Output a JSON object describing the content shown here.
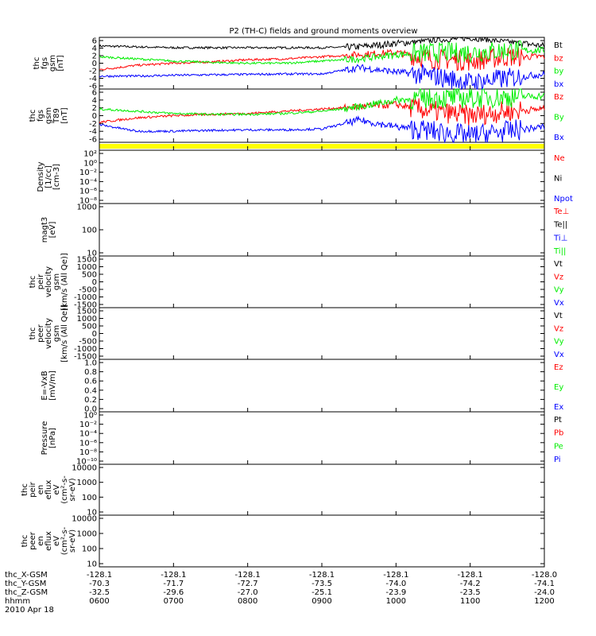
{
  "title": "P2 (TH-C) fields and ground moments overview",
  "colors": {
    "black": "#000000",
    "red": "#ff0000",
    "green": "#00ee00",
    "blue": "#0000ff",
    "yellow": "#ffff00"
  },
  "panels": [
    {
      "ylabel": [
        "thc",
        "fgs",
        "gsm",
        "[nT]"
      ],
      "ticks": [
        "6",
        "4",
        "2",
        "0",
        "-2",
        "-4",
        "-6"
      ],
      "legend": [
        [
          "Bt",
          "black"
        ],
        [
          "bz",
          "red"
        ],
        [
          "by",
          "green"
        ],
        [
          "bx",
          "blue"
        ]
      ]
    },
    {
      "ylabel": [
        "thc",
        "fgs",
        "gsm",
        "T89",
        "[nT]"
      ],
      "ticks": [
        "6",
        "4",
        "2",
        "0",
        "-2",
        "-4",
        "-6"
      ],
      "legend": [
        [
          "Bz",
          "red"
        ],
        [
          "By",
          "green"
        ],
        [
          "Bx",
          "blue"
        ]
      ]
    },
    {
      "ylabel": [],
      "ticks": [],
      "legend": []
    },
    {
      "ylabel": [
        "Density",
        "[1/cc]",
        "[cm-3]"
      ],
      "ticks": [
        "10²",
        "10⁰",
        "10⁻²",
        "10⁻⁴",
        "10⁻⁶",
        "10⁻⁸"
      ],
      "legend": [
        [
          "Ne",
          "red"
        ],
        [
          "Ni",
          "black"
        ],
        [
          "Npot",
          "blue"
        ]
      ]
    },
    {
      "ylabel": [
        "magt3",
        "[eV]"
      ],
      "ticks": [
        "1000",
        "100",
        "10"
      ],
      "legend": [
        [
          "Te⊥",
          "red"
        ],
        [
          "Te||",
          "black"
        ],
        [
          "Ti⊥",
          "blue"
        ],
        [
          "Ti||",
          "green"
        ]
      ]
    },
    {
      "ylabel": [
        "thc",
        "peir",
        "velocity",
        "gsm",
        "[km/s (All Qe)]"
      ],
      "ticks": [
        "1500",
        "1000",
        "500",
        "0",
        "-500",
        "-1000",
        "-1500"
      ],
      "legend": [
        [
          "Vt",
          "black"
        ],
        [
          "Vz",
          "red"
        ],
        [
          "Vy",
          "green"
        ],
        [
          "Vx",
          "blue"
        ]
      ]
    },
    {
      "ylabel": [
        "thc",
        "peer",
        "velocity",
        "gsm",
        "[km/s (All Qe)]"
      ],
      "ticks": [
        "1500",
        "1000",
        "500",
        "0",
        "-500",
        "-1000",
        "-1500"
      ],
      "legend": [
        [
          "Vt",
          "black"
        ],
        [
          "Vz",
          "red"
        ],
        [
          "Vy",
          "green"
        ],
        [
          "Vx",
          "blue"
        ]
      ]
    },
    {
      "ylabel": [
        "E=-VxB",
        "[mV/m]"
      ],
      "ticks": [
        "1.0",
        "0.8",
        "0.6",
        "0.4",
        "0.2",
        "0.0"
      ],
      "legend": [
        [
          "Ez",
          "red"
        ],
        [
          "Ey",
          "green"
        ],
        [
          "Ex",
          "blue"
        ]
      ]
    },
    {
      "ylabel": [
        "Pressure",
        "[nPa]"
      ],
      "ticks": [
        "10⁰",
        "10⁻²",
        "10⁻⁴",
        "10⁻⁶",
        "10⁻⁸",
        "10⁻¹⁰"
      ],
      "legend": [
        [
          "Pt",
          "black"
        ],
        [
          "Pb",
          "red"
        ],
        [
          "Pe",
          "green"
        ],
        [
          "Pi",
          "blue"
        ]
      ]
    },
    {
      "ylabel": [
        "thc",
        "peir",
        "en",
        "eflux",
        "eV",
        "(cm²-s-",
        "sr-eV)"
      ],
      "ticks": [
        "10000",
        "1000",
        "100",
        "10"
      ],
      "legend": []
    },
    {
      "ylabel": [
        "thc",
        "peer",
        "en",
        "eflux",
        "eV",
        "(cm²-s-",
        "sr-eV)"
      ],
      "ticks": [
        "10000",
        "1000",
        "100",
        "10"
      ],
      "legend": []
    }
  ],
  "xaxis": {
    "row_labels": [
      "thc_X-GSM",
      "thc_Y-GSM",
      "thc_Z-GSM",
      "hhmm",
      "2010 Apr 18"
    ],
    "columns": [
      {
        "x": "-128.1",
        "y": "-70.3",
        "z": "-32.5",
        "t": "0600"
      },
      {
        "x": "-128.1",
        "y": "-71.7",
        "z": "-29.6",
        "t": "0700"
      },
      {
        "x": "-128.1",
        "y": "-72.7",
        "z": "-27.0",
        "t": "0800"
      },
      {
        "x": "-128.1",
        "y": "-73.5",
        "z": "-25.1",
        "t": "0900"
      },
      {
        "x": "-128.1",
        "y": "-74.0",
        "z": "-23.9",
        "t": "1000"
      },
      {
        "x": "-128.1",
        "y": "-74.2",
        "z": "-23.5",
        "t": "1100"
      },
      {
        "x": "-128.0",
        "y": "-74.1",
        "z": "-24.0",
        "t": "1200"
      }
    ]
  },
  "chart_data": {
    "type": "line",
    "title": "P2 (TH-C) fields and ground moments overview",
    "x_ticks": [
      "0600",
      "0700",
      "0800",
      "0900",
      "1000",
      "1100",
      "1200"
    ],
    "xlim": [
      "0600",
      "1200"
    ],
    "panels": [
      {
        "ylim": [
          -6,
          6
        ],
        "series": [
          {
            "name": "Bt",
            "color": "black",
            "x": [
              6.0,
              7.0,
              8.0,
              9.0,
              9.5,
              10.0,
              10.5,
              11.0,
              11.5,
              12.0
            ],
            "y": [
              4,
              3.6,
              3.6,
              3.6,
              3.8,
              4.6,
              5.3,
              5.8,
              5.0,
              4.0
            ]
          },
          {
            "name": "bz",
            "color": "red",
            "x": [
              6.0,
              6.5,
              7.0,
              7.5,
              8.0,
              8.5,
              9.0,
              9.5,
              10.0,
              10.5,
              11.0,
              11.5,
              12.0
            ],
            "y": [
              -1.5,
              -0.5,
              0,
              0.3,
              0.8,
              1,
              1.5,
              2,
              2.5,
              1,
              0.5,
              1.5,
              1.5
            ]
          },
          {
            "name": "by",
            "color": "green",
            "x": [
              6.0,
              6.5,
              7.0,
              7.5,
              8.0,
              8.5,
              9.0,
              9.5,
              10.0,
              10.5,
              11.0,
              11.5,
              12.0
            ],
            "y": [
              1.5,
              1,
              0.5,
              0.2,
              0,
              0,
              0.5,
              1,
              2,
              2.5,
              2.5,
              3,
              3
            ]
          },
          {
            "name": "bx",
            "color": "blue",
            "x": [
              6.0,
              6.5,
              7.0,
              7.5,
              8.0,
              8.5,
              9.0,
              9.5,
              10.0,
              10.5,
              11.0,
              11.5,
              12.0
            ],
            "y": [
              -3,
              -3,
              -2.8,
              -2.7,
              -2.6,
              -2.5,
              -2.5,
              -1,
              -2,
              -3,
              -4.5,
              -3.5,
              -2.5
            ]
          }
        ]
      },
      {
        "ylim": [
          -6,
          6
        ],
        "series": [
          {
            "name": "Bz",
            "color": "red",
            "x": [
              6.0,
              6.5,
              7.0,
              7.5,
              8.0,
              8.5,
              9.0,
              9.5,
              10.0,
              10.5,
              11.0,
              11.5,
              12.0
            ],
            "y": [
              -1.5,
              -0.5,
              0,
              0.3,
              0.5,
              1,
              1.5,
              2,
              2.5,
              1,
              0,
              1,
              1.5
            ]
          },
          {
            "name": "By",
            "color": "green",
            "x": [
              6.0,
              6.5,
              7.0,
              7.5,
              8.0,
              8.5,
              9.0,
              9.5,
              10.0,
              10.5,
              11.0,
              11.5,
              12.0
            ],
            "y": [
              1.5,
              1,
              0.5,
              0.3,
              0.3,
              0.5,
              1,
              2,
              3.5,
              4,
              4,
              4.2,
              4.5
            ]
          },
          {
            "name": "Bx",
            "color": "blue",
            "x": [
              6.0,
              6.5,
              7.0,
              7.5,
              8.0,
              8.5,
              9.0,
              9.5,
              10.0,
              10.5,
              11.0,
              11.5,
              12.0
            ],
            "y": [
              -2,
              -3.5,
              -3.5,
              -3.3,
              -3.2,
              -3.2,
              -3,
              -1,
              -2.5,
              -3.5,
              -4.5,
              -3.5,
              -2.5
            ]
          }
        ]
      }
    ]
  }
}
